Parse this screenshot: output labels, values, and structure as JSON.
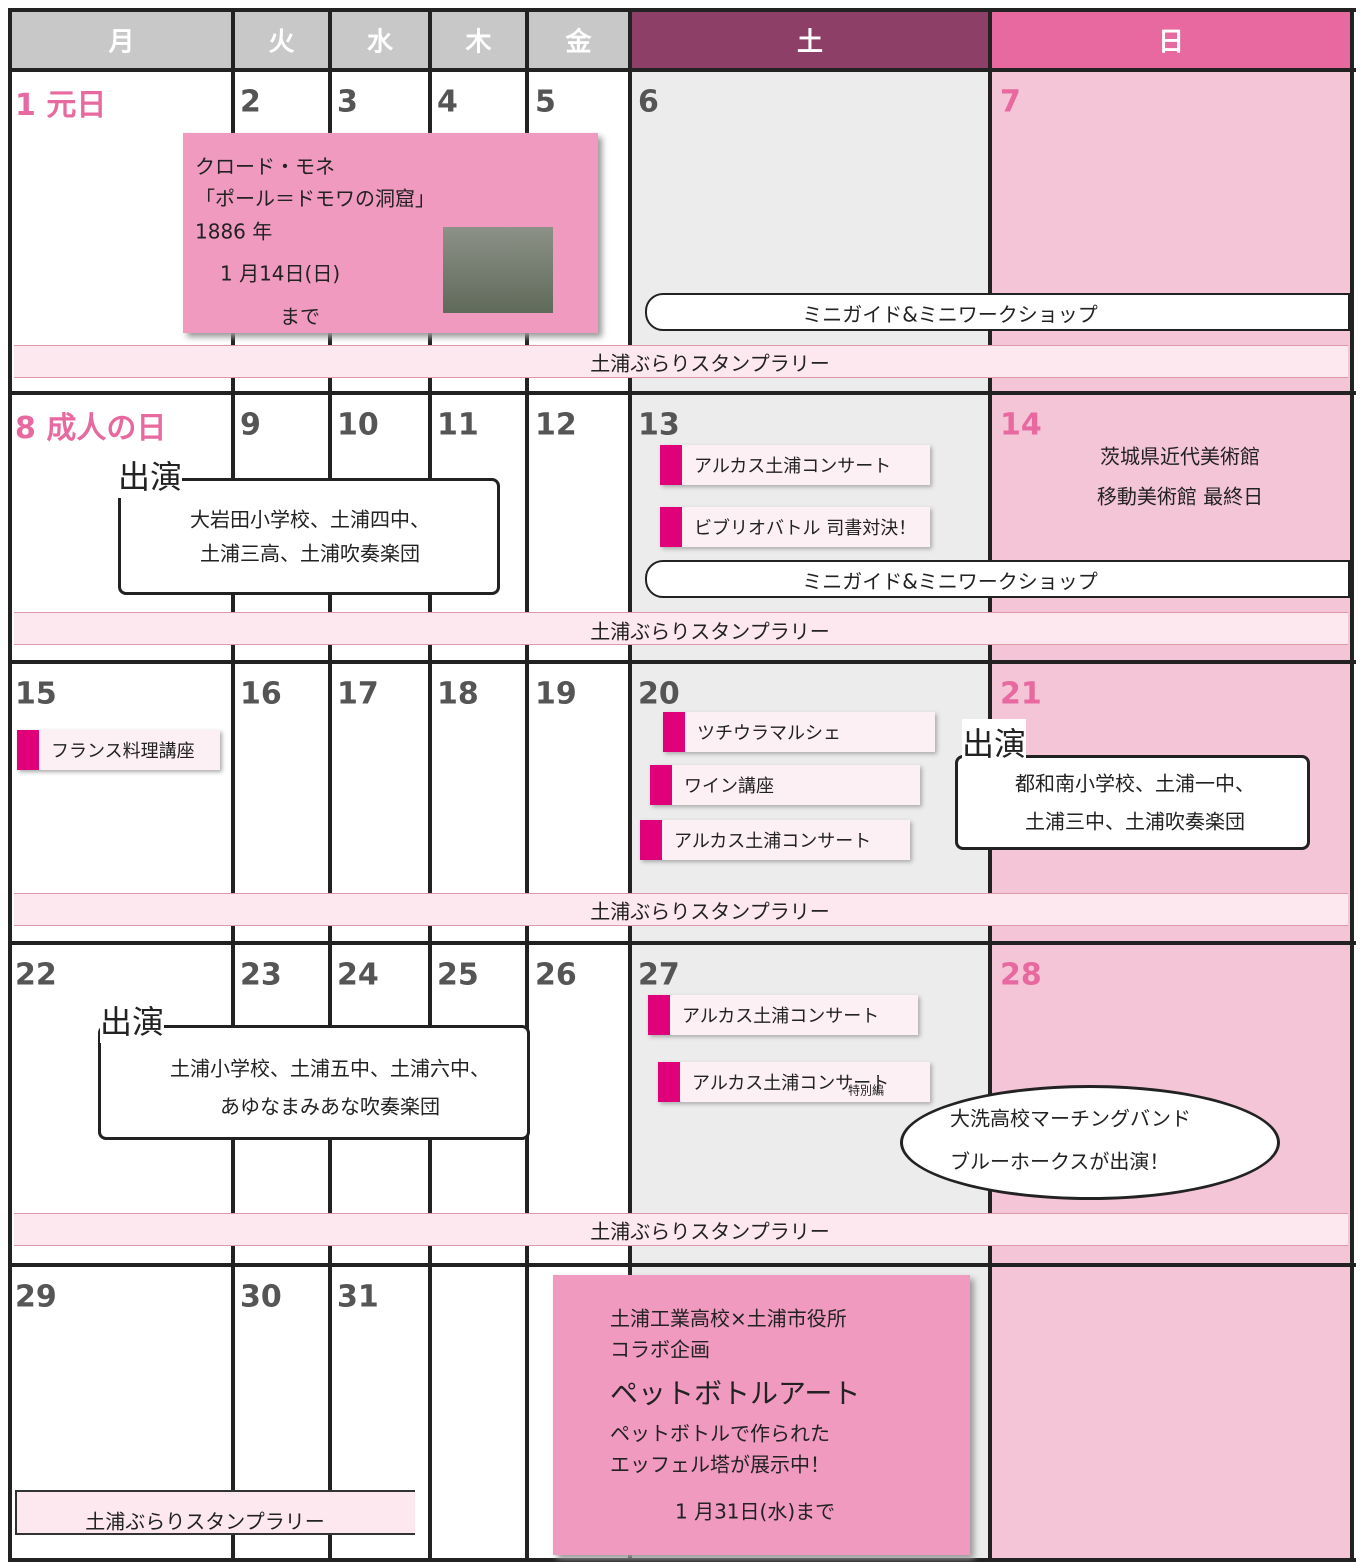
{
  "header": {
    "days": [
      "月",
      "火",
      "水",
      "木",
      "金",
      "土",
      "日"
    ]
  },
  "weeks": [
    {
      "dates": [
        "1 元日",
        "2",
        "3",
        "4",
        "5",
        "6",
        "7"
      ],
      "exhibition": [
        "クロード・モネ",
        "「ポール＝ドモワの洞窟」",
        "1886 年",
        "1 月14日(日)",
        "まで"
      ],
      "mini_guide": "ミニガイド&ミニワークショップ",
      "stamp_rally": "土浦ぶらりスタンプラリー"
    },
    {
      "dates": [
        "8 成人の日",
        "9",
        "10",
        "11",
        "12",
        "13",
        "14"
      ],
      "performers": {
        "title": "出演",
        "lines": [
          "大岩田小学校、土浦四中、",
          "土浦三高、土浦吹奏楽団"
        ]
      },
      "saturday_events": [
        "アルカス土浦コンサート",
        "ビブリオバトル 司書対決！"
      ],
      "sunday_note": [
        "茨城県近代美術館",
        "移動美術館 最終日"
      ],
      "mini_guide": "ミニガイド&ミニワークショップ",
      "stamp_rally": "土浦ぶらりスタンプラリー"
    },
    {
      "dates": [
        "15",
        "16",
        "17",
        "18",
        "19",
        "20",
        "21"
      ],
      "monday_event": "フランス料理講座",
      "saturday_events": [
        "ツチウラマルシェ",
        "ワイン講座",
        "アルカス土浦コンサート"
      ],
      "performers": {
        "title": "出演",
        "lines": [
          "都和南小学校、土浦一中、",
          "土浦三中、土浦吹奏楽団"
        ]
      },
      "stamp_rally": "土浦ぶらりスタンプラリー"
    },
    {
      "dates": [
        "22",
        "23",
        "24",
        "25",
        "26",
        "27",
        "28"
      ],
      "performers": {
        "title": "出演",
        "lines": [
          "土浦小学校、土浦五中、土浦六中、",
          "あゆなまみあな吹奏楽団"
        ]
      },
      "saturday_events": [
        "アルカス土浦コンサート",
        "アルカス土浦コンサート"
      ],
      "special_label": "特別編",
      "callout": [
        "大洗高校マーチングバンド",
        "ブルーホークスが出演！"
      ],
      "stamp_rally": "土浦ぶらりスタンプラリー"
    },
    {
      "dates": [
        "29",
        "30",
        "31"
      ],
      "stamp_rally": "土浦ぶらりスタンプラリー",
      "collab_note": [
        "土浦工業高校×土浦市役所",
        "コラボ企画",
        "ペットボトルアート",
        "ペットボトルで作られた",
        "エッフェル塔が展示中！",
        "1 月31日(水)まで"
      ]
    }
  ]
}
